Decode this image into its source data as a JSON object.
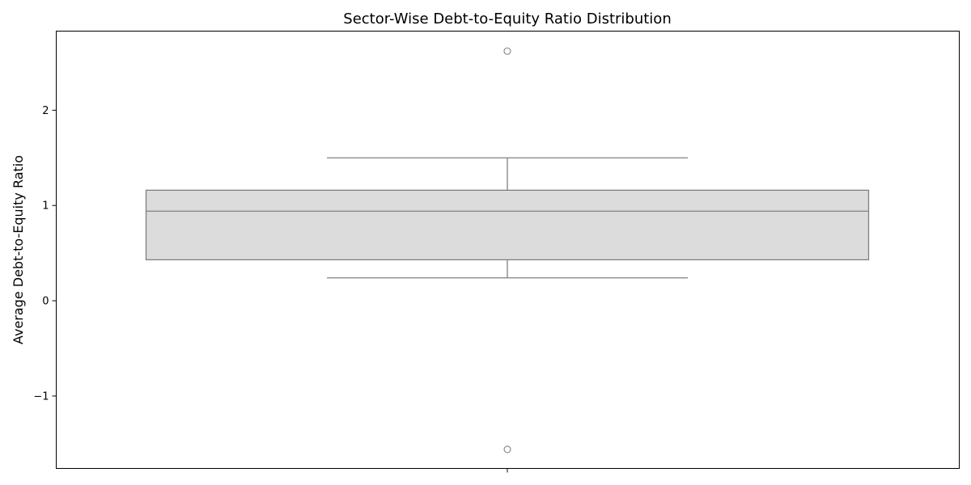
{
  "chart_data": {
    "type": "box",
    "title": "Sector-Wise Debt-to-Equity Ratio Distribution",
    "xlabel": "",
    "ylabel": "Average Debt-to-Equity Ratio",
    "ylim": [
      -1.76,
      2.83
    ],
    "yticks": [
      -1,
      0,
      1,
      2
    ],
    "ytick_labels": [
      "−1",
      "0",
      "1",
      "2"
    ],
    "grid": false,
    "legend": "none",
    "boxes": [
      {
        "whisker_low": 0.24,
        "q1": 0.43,
        "median": 0.94,
        "q3": 1.16,
        "whisker_high": 1.5,
        "outliers": [
          2.62,
          -1.56
        ]
      }
    ],
    "colors": {
      "box_fill": "#dcdcdc",
      "line": "#808080",
      "axes": "#000000"
    }
  }
}
